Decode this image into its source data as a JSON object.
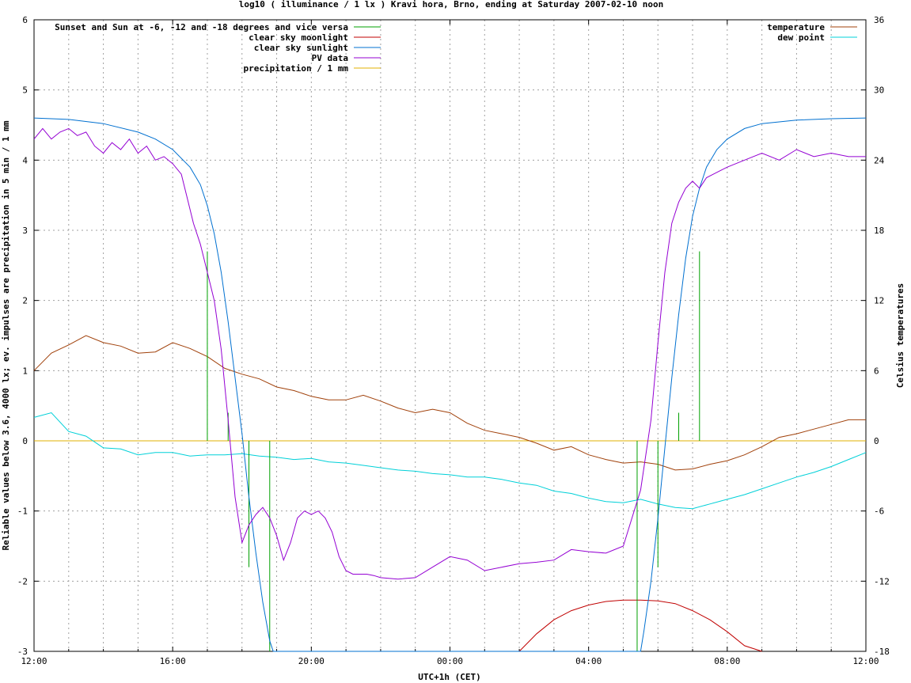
{
  "chart_data": {
    "type": "line",
    "title": "log10 ( illuminance / 1 lx ) Kravi hora, Brno, ending at Saturday 2007-02-10 noon",
    "xlabel": "UTC+1h (CET)",
    "ylabel": "Reliable values below 3.6, 4000 lx; ev. impulses are precipitation in 5 min / 1 mm",
    "y2label": "Celsius temperatures",
    "x_unit": "hours since 2007-02-09 12:00 UTC+1h",
    "xlim": [
      0,
      24
    ],
    "ylim": [
      -3,
      6
    ],
    "y2lim": [
      -18,
      36
    ],
    "x_ticks": [
      0,
      4,
      8,
      12,
      16,
      20,
      24
    ],
    "x_tick_labels": [
      "12:00",
      "16:00",
      "20:00",
      "00:00",
      "04:00",
      "08:00",
      "12:00"
    ],
    "y_ticks": [
      -3,
      -2,
      -1,
      0,
      1,
      2,
      3,
      4,
      5,
      6
    ],
    "y_tick_labels": [
      "-3",
      "-2",
      "-1",
      "0",
      "1",
      "2",
      "3",
      "4",
      "5",
      "6"
    ],
    "y2_ticks": [
      -18,
      -12,
      -6,
      0,
      6,
      12,
      18,
      24,
      30,
      36
    ],
    "y2_tick_labels": [
      "-18",
      "-12",
      "-6",
      "0",
      "6",
      "12",
      "18",
      "24",
      "30",
      "36"
    ],
    "grid": true,
    "legend_left": [
      {
        "name": "Sunset and Sun at -6, -12 and -18 degrees and vice versa",
        "color": "#00a000"
      },
      {
        "name": "clear sky moonlight",
        "color": "#c00000"
      },
      {
        "name": "clear sky sunlight",
        "color": "#0070d0"
      },
      {
        "name": "PV data",
        "color": "#9400d3"
      },
      {
        "name": "precipitation / 1 mm",
        "color": "#e0b000"
      }
    ],
    "legend_right": [
      {
        "name": "temperature",
        "color": "#a0400a"
      },
      {
        "name": "dew point",
        "color": "#00d0d8"
      }
    ],
    "sun_event_impulses": {
      "axis": "y",
      "x": [
        5.0,
        5.6,
        6.2,
        6.8,
        17.4,
        18.0,
        18.6,
        19.2
      ],
      "y": [
        2.7,
        0.4,
        -1.8,
        -3.0,
        -3.0,
        -1.8,
        0.4,
        2.7
      ]
    },
    "precipitation": {
      "axis": "y",
      "x": [
        0,
        24
      ],
      "y": [
        0,
        0
      ]
    },
    "clear_sky_sunlight": {
      "axis": "y",
      "x": [
        0,
        1,
        2,
        3,
        3.5,
        4,
        4.5,
        4.8,
        5.0,
        5.2,
        5.4,
        5.6,
        5.8,
        6.0,
        6.2,
        6.4,
        6.6,
        6.8,
        6.9,
        17.5,
        17.6,
        17.8,
        18.0,
        18.2,
        18.4,
        18.6,
        18.8,
        19.0,
        19.2,
        19.4,
        19.7,
        20.0,
        20.5,
        21,
        22,
        23,
        24
      ],
      "y": [
        4.6,
        4.58,
        4.52,
        4.4,
        4.3,
        4.15,
        3.9,
        3.65,
        3.35,
        2.95,
        2.4,
        1.7,
        0.9,
        0.1,
        -0.8,
        -1.6,
        -2.3,
        -2.85,
        -3.0,
        -3.0,
        -2.7,
        -2.0,
        -1.1,
        -0.1,
        0.9,
        1.8,
        2.6,
        3.2,
        3.6,
        3.9,
        4.15,
        4.3,
        4.45,
        4.52,
        4.57,
        4.59,
        4.6
      ]
    },
    "clear_sky_moonlight": {
      "axis": "y",
      "x": [
        14.0,
        14.5,
        15.0,
        15.5,
        16.0,
        16.5,
        17.0,
        17.5,
        18.0,
        18.5,
        19.0,
        19.5,
        20.0,
        20.5,
        21.0
      ],
      "y": [
        -3.0,
        -2.75,
        -2.55,
        -2.42,
        -2.34,
        -2.29,
        -2.27,
        -2.27,
        -2.28,
        -2.32,
        -2.42,
        -2.55,
        -2.72,
        -2.92,
        -3.0
      ]
    },
    "pv_data": {
      "axis": "y",
      "x": [
        0,
        0.25,
        0.5,
        0.75,
        1.0,
        1.25,
        1.5,
        1.75,
        2.0,
        2.25,
        2.5,
        2.75,
        3.0,
        3.25,
        3.5,
        3.75,
        4.0,
        4.25,
        4.4,
        4.6,
        4.8,
        5.0,
        5.2,
        5.4,
        5.6,
        5.8,
        6.0,
        6.2,
        6.4,
        6.6,
        6.8,
        7.0,
        7.2,
        7.4,
        7.6,
        7.8,
        8.0,
        8.2,
        8.4,
        8.6,
        8.8,
        9.0,
        9.2,
        9.4,
        9.6,
        9.8,
        10.0,
        10.5,
        11.0,
        11.5,
        12.0,
        12.5,
        13.0,
        13.5,
        14.0,
        14.5,
        15.0,
        15.5,
        16.0,
        16.5,
        17.0,
        17.5,
        17.8,
        18.0,
        18.2,
        18.4,
        18.6,
        18.8,
        19.0,
        19.2,
        19.4,
        19.6,
        19.8,
        20.0,
        20.5,
        21.0,
        21.5,
        22.0,
        22.5,
        23.0,
        23.5,
        24.0
      ],
      "y": [
        4.3,
        4.45,
        4.3,
        4.4,
        4.45,
        4.35,
        4.4,
        4.2,
        4.1,
        4.25,
        4.15,
        4.3,
        4.1,
        4.2,
        4.0,
        4.05,
        3.95,
        3.8,
        3.5,
        3.1,
        2.8,
        2.4,
        2.0,
        1.3,
        0.3,
        -0.8,
        -1.45,
        -1.2,
        -1.05,
        -0.95,
        -1.1,
        -1.35,
        -1.7,
        -1.45,
        -1.1,
        -1.0,
        -1.05,
        -1.0,
        -1.1,
        -1.3,
        -1.65,
        -1.85,
        -1.9,
        -1.9,
        -1.9,
        -1.92,
        -1.95,
        -1.97,
        -1.95,
        -1.8,
        -1.65,
        -1.7,
        -1.85,
        -1.8,
        -1.75,
        -1.73,
        -1.7,
        -1.55,
        -1.58,
        -1.6,
        -1.5,
        -0.7,
        0.3,
        1.4,
        2.4,
        3.1,
        3.4,
        3.6,
        3.7,
        3.6,
        3.75,
        3.8,
        3.85,
        3.9,
        4.0,
        4.1,
        4.0,
        4.15,
        4.05,
        4.1,
        4.05,
        4.05
      ]
    },
    "temperature": {
      "axis": "y2",
      "x": [
        0,
        0.5,
        1,
        1.5,
        2,
        2.5,
        3,
        3.5,
        4,
        4.5,
        5,
        5.5,
        6,
        6.5,
        7,
        7.5,
        8,
        8.5,
        9,
        9.5,
        10,
        10.5,
        11,
        11.5,
        12,
        12.5,
        13,
        13.5,
        14,
        14.5,
        15,
        15.5,
        16,
        16.5,
        17,
        17.5,
        18,
        18.5,
        19,
        19.5,
        20,
        20.5,
        21,
        21.5,
        22,
        22.5,
        23,
        23.5,
        24
      ],
      "y": [
        6.0,
        7.5,
        8.2,
        9.0,
        8.4,
        8.1,
        7.5,
        7.6,
        8.4,
        7.9,
        7.2,
        6.2,
        5.7,
        5.3,
        4.6,
        4.3,
        3.8,
        3.5,
        3.5,
        3.9,
        3.4,
        2.8,
        2.4,
        2.7,
        2.4,
        1.5,
        0.9,
        0.6,
        0.3,
        -0.2,
        -0.8,
        -0.5,
        -1.2,
        -1.6,
        -1.9,
        -1.8,
        -2.0,
        -2.5,
        -2.4,
        -2.0,
        -1.7,
        -1.2,
        -0.5,
        0.3,
        0.6,
        1.0,
        1.4,
        1.8,
        1.8
      ]
    },
    "dew_point": {
      "axis": "y2",
      "x": [
        0,
        0.5,
        1,
        1.5,
        2,
        2.5,
        3,
        3.5,
        4,
        4.5,
        5,
        5.5,
        6,
        6.5,
        7,
        7.5,
        8,
        8.5,
        9,
        9.5,
        10,
        10.5,
        11,
        11.5,
        12,
        12.5,
        13,
        13.5,
        14,
        14.5,
        15,
        15.5,
        16,
        16.5,
        17,
        17.5,
        18,
        18.5,
        19,
        19.5,
        20,
        20.5,
        21,
        21.5,
        22,
        22.5,
        23,
        23.5,
        24
      ],
      "y": [
        2.0,
        2.4,
        0.8,
        0.4,
        -0.6,
        -0.7,
        -1.2,
        -1.0,
        -1.0,
        -1.3,
        -1.2,
        -1.2,
        -1.1,
        -1.3,
        -1.4,
        -1.6,
        -1.5,
        -1.8,
        -1.9,
        -2.1,
        -2.3,
        -2.5,
        -2.6,
        -2.8,
        -2.9,
        -3.1,
        -3.1,
        -3.3,
        -3.6,
        -3.8,
        -4.3,
        -4.5,
        -4.9,
        -5.2,
        -5.3,
        -5.0,
        -5.4,
        -5.7,
        -5.8,
        -5.4,
        -5.0,
        -4.6,
        -4.1,
        -3.6,
        -3.1,
        -2.7,
        -2.2,
        -1.6,
        -1.0
      ]
    }
  }
}
